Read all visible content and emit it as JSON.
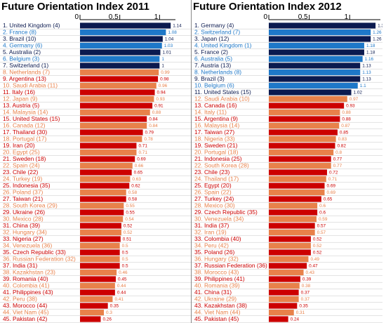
{
  "charts": [
    {
      "title": "Future Orientation Index 2011",
      "ticks": [
        "0",
        "0.5",
        "1"
      ],
      "xlim": [
        0,
        1.2
      ],
      "chart_data": {
        "type": "bar",
        "title": "Future Orientation Index 2011",
        "xlim": [
          0,
          1.2
        ],
        "ticks": [
          0,
          0.5,
          1
        ],
        "categories": [
          "1. United Kingdom (4)",
          "2. France (8)",
          "3. Brazil (10)",
          "4. Germany (6)",
          "5. Australia (2)",
          "6. Belgium (3)",
          "7. Switzerland (1)",
          "8. Netherlands (7)",
          "9. Argentina (13)",
          "10. Saudi Arabia (11)",
          "11. Italy (16)",
          "12. Japan (9)",
          "13. Austria (5)",
          "14. Malaysia (14)",
          "15. United States (15)",
          "16. Canada (12)",
          "17. Thailand (30)",
          "18. Portugal (17)",
          "19. Iran (20)",
          "20. Egypt (25)",
          "21. Sweden (18)",
          "22. Spain (24)",
          "23. Chile (22)",
          "24. Turkey (19)",
          "25. Indonesia (35)",
          "26. Poland (37)",
          "27. Taiwan (21)",
          "28. South Korea (29)",
          "29. Ukraine (26)",
          "30. Mexico (28)",
          "31. China (39)",
          "32. Hungary (34)",
          "33. Nigeria (27)",
          "34. Venezuela (36)",
          "35. Czech Republic (33)",
          "36. Russian Federation (32)",
          "37. India (31)",
          "38. Kazakhstan (23)",
          "39. Romania (40)",
          "40. Colombia (41)",
          "41. Philippines (43)",
          "42. Peru (38)",
          "43. Morocco (44)",
          "44. Viet Nam (45)",
          "45. Pakistan (42)"
        ],
        "values": [
          1.14,
          1.08,
          1.04,
          1.03,
          1.01,
          1,
          1,
          0.99,
          0.98,
          0.96,
          0.94,
          0.93,
          0.91,
          0.88,
          0.84,
          0.84,
          0.79,
          0.78,
          0.71,
          0.71,
          0.69,
          0.66,
          0.65,
          0.63,
          0.62,
          0.58,
          0.58,
          0.55,
          0.55,
          0.54,
          0.52,
          0.52,
          0.51,
          0.5,
          0.5,
          0.5,
          0.5,
          0.46,
          0.45,
          0.44,
          0.44,
          0.41,
          0.35,
          0.3,
          0.26
        ],
        "value_labels": [
          "1.14",
          "1.08",
          "1.04",
          "1.03",
          "1.01",
          "1",
          "1",
          "0.99",
          "0.98",
          "0.96",
          "0.94",
          "0.93",
          "0.91",
          "0.88",
          "0.84",
          "0.84",
          "0.79",
          "0.78",
          "0.71",
          "0.71",
          "0.69",
          "0.66",
          "0.65",
          "0.63",
          "0.62",
          "0.58",
          "0.58",
          "0.55",
          "0.55",
          "0.54",
          "0.52",
          "0.52",
          "0.51",
          "0.5",
          "0.5",
          "0.5",
          "0.5",
          "0.46",
          "0.45",
          "0.44",
          "0.44",
          "0.41",
          "0.35",
          "0.3",
          "0.26"
        ],
        "bar_colors": [
          "#0b1a4f",
          "#1e78c8",
          "#0b1a4f",
          "#1e78c8",
          "#0b1a4f",
          "#1e78c8",
          "#0b1a4f",
          "#e8814a",
          "#cc0000",
          "#e8814a",
          "#cc0000",
          "#e8814a",
          "#cc0000",
          "#e8814a",
          "#cc0000",
          "#e8814a",
          "#cc0000",
          "#e8814a",
          "#cc0000",
          "#e8814a",
          "#cc0000",
          "#e8814a",
          "#cc0000",
          "#e8814a",
          "#cc0000",
          "#e8814a",
          "#cc0000",
          "#e8814a",
          "#cc0000",
          "#e8814a",
          "#cc0000",
          "#e8814a",
          "#cc0000",
          "#e8814a",
          "#cc0000",
          "#e8814a",
          "#cc0000",
          "#e8814a",
          "#cc0000",
          "#e8814a",
          "#cc0000",
          "#e8814a",
          "#cc0000",
          "#e8814a",
          "#cc0000"
        ],
        "label_colors": [
          "#0b1a4f",
          "#1e78c8",
          "#0b1a4f",
          "#1e78c8",
          "#0b1a4f",
          "#1e78c8",
          "#0b1a4f",
          "#e8814a",
          "#cc0000",
          "#e8814a",
          "#cc0000",
          "#e8814a",
          "#cc0000",
          "#e8814a",
          "#cc0000",
          "#e8814a",
          "#cc0000",
          "#e8814a",
          "#cc0000",
          "#e8814a",
          "#cc0000",
          "#e8814a",
          "#cc0000",
          "#e8814a",
          "#cc0000",
          "#e8814a",
          "#cc0000",
          "#e8814a",
          "#cc0000",
          "#e8814a",
          "#cc0000",
          "#e8814a",
          "#cc0000",
          "#e8814a",
          "#cc0000",
          "#e8814a",
          "#cc0000",
          "#e8814a",
          "#cc0000",
          "#e8814a",
          "#cc0000",
          "#e8814a",
          "#cc0000",
          "#e8814a",
          "#cc0000"
        ]
      }
    },
    {
      "title": "Future Orientation Index 2012",
      "ticks": [
        "0",
        "0.5",
        "1"
      ],
      "xlim": [
        0,
        1.38
      ],
      "chart_data": {
        "type": "bar",
        "title": "Future Orientation Index 2012",
        "xlim": [
          0,
          1.38
        ],
        "ticks": [
          0,
          0.5,
          1
        ],
        "categories": [
          "1. Germany (4)",
          "2. Switzerland (7)",
          "3. Japan (12)",
          "4. United Kingdom (1)",
          "5. France (2)",
          "6. Australia (5)",
          "7. Austria (13)",
          "8. Netherlands (8)",
          "9. Brazil (3)",
          "10. Belgium (6)",
          "11. United States (15)",
          "12. Saudi Arabia (10)",
          "13. Canada (16)",
          "14. Italy (11)",
          "15. Argentina (9)",
          "16. Malaysia (14)",
          "17. Taiwan (27)",
          "18. Nigeria (33)",
          "19. Sweden (21)",
          "20. Portugal (18)",
          "21. Indonesia (25)",
          "22. South Korea (28)",
          "23. Chile (23)",
          "24. Thailand (17)",
          "25. Egypt (20)",
          "26. Spain (22)",
          "27. Turkey (24)",
          "28. Mexico (30)",
          "29. Czech Republic (35)",
          "30. Venezuela (34)",
          "31. India (37)",
          "32. Iran (19)",
          "33. Colombia (40)",
          "34. Peru (42)",
          "35. Poland (26)",
          "36. Hungary (32)",
          "37. Russian Federation (36)",
          "38. Morocco (43)",
          "39. Philippines (41)",
          "40. Romania (39)",
          "41. China (31)",
          "42. Ukraine (29)",
          "43. Kazakhstan (38)",
          "44. Viet Nam (44)",
          "45. Pakistan (45)"
        ],
        "values": [
          1.32,
          1.26,
          1.26,
          1.18,
          1.18,
          1.16,
          1.13,
          1.13,
          1.13,
          1.1,
          1.02,
          0.97,
          0.93,
          0.88,
          0.88,
          0.87,
          0.85,
          0.83,
          0.82,
          0.8,
          0.77,
          0.77,
          0.72,
          0.71,
          0.69,
          0.69,
          0.65,
          0.6,
          0.6,
          0.59,
          0.57,
          0.57,
          0.52,
          0.52,
          0.52,
          0.49,
          0.47,
          0.43,
          0.39,
          0.38,
          0.37,
          0.37,
          0.35,
          0.31,
          0.24
        ],
        "value_labels": [
          "1.32",
          "1.26",
          "1.26",
          "1.18",
          "1.18",
          "1.16",
          "1.13",
          "1.13",
          "1.13",
          "1.1",
          "1.02",
          "0.97",
          "0.93",
          "0.88",
          "0.88",
          "0.87",
          "0.85",
          "0.83",
          "0.82",
          "0.8",
          "0.77",
          "0.77",
          "0.72",
          "0.71",
          "0.69",
          "0.69",
          "0.65",
          "0.6",
          "0.6",
          "0.59",
          "0.57",
          "0.57",
          "0.52",
          "0.52",
          "0.52",
          "0.49",
          "0.47",
          "0.43",
          "0.39",
          "0.38",
          "0.37",
          "0.37",
          "0.35",
          "0.31",
          "0.24"
        ],
        "bar_colors": [
          "#0b1a4f",
          "#1e78c8",
          "#0b1a4f",
          "#1e78c8",
          "#0b1a4f",
          "#1e78c8",
          "#0b1a4f",
          "#1e78c8",
          "#0b1a4f",
          "#1e78c8",
          "#0b1a4f",
          "#e8814a",
          "#cc0000",
          "#e8814a",
          "#cc0000",
          "#e8814a",
          "#cc0000",
          "#e8814a",
          "#cc0000",
          "#e8814a",
          "#cc0000",
          "#e8814a",
          "#cc0000",
          "#e8814a",
          "#cc0000",
          "#e8814a",
          "#cc0000",
          "#e8814a",
          "#cc0000",
          "#e8814a",
          "#cc0000",
          "#e8814a",
          "#cc0000",
          "#e8814a",
          "#cc0000",
          "#e8814a",
          "#cc0000",
          "#e8814a",
          "#cc0000",
          "#e8814a",
          "#cc0000",
          "#e8814a",
          "#cc0000",
          "#e8814a",
          "#cc0000"
        ],
        "label_colors": [
          "#0b1a4f",
          "#1e78c8",
          "#0b1a4f",
          "#1e78c8",
          "#0b1a4f",
          "#1e78c8",
          "#0b1a4f",
          "#1e78c8",
          "#0b1a4f",
          "#1e78c8",
          "#0b1a4f",
          "#e8814a",
          "#cc0000",
          "#e8814a",
          "#cc0000",
          "#e8814a",
          "#cc0000",
          "#e8814a",
          "#cc0000",
          "#e8814a",
          "#cc0000",
          "#e8814a",
          "#cc0000",
          "#e8814a",
          "#cc0000",
          "#e8814a",
          "#cc0000",
          "#e8814a",
          "#cc0000",
          "#e8814a",
          "#cc0000",
          "#e8814a",
          "#cc0000",
          "#e8814a",
          "#cc0000",
          "#e8814a",
          "#cc0000",
          "#e8814a",
          "#cc0000",
          "#e8814a",
          "#cc0000",
          "#e8814a",
          "#cc0000",
          "#e8814a",
          "#cc0000"
        ]
      }
    }
  ]
}
